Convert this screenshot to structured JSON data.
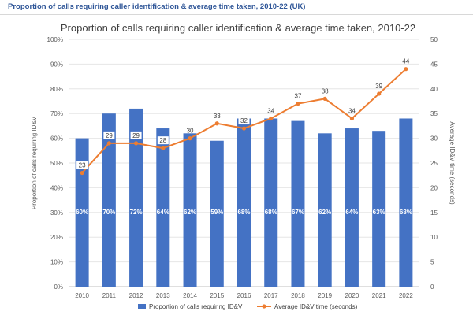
{
  "header": {
    "title": "Proportion of calls requiring caller identification & average time taken, 2010-22 (UK)"
  },
  "chart_data": {
    "type": "bar+line",
    "title": "Proportion of calls requiring caller identification & average time taken, 2010-22",
    "categories": [
      "2010",
      "2011",
      "2012",
      "2013",
      "2014",
      "2015",
      "2016",
      "2017",
      "2018",
      "2019",
      "2020",
      "2021",
      "2022"
    ],
    "series": [
      {
        "name": "Proportion of calls requiring ID&V",
        "type": "bar",
        "axis": "left",
        "color": "#4472c4",
        "values": [
          60,
          70,
          72,
          64,
          62,
          59,
          68,
          68,
          67,
          62,
          64,
          63,
          68
        ],
        "labels": [
          "60%",
          "70%",
          "72%",
          "64%",
          "62%",
          "59%",
          "68%",
          "68%",
          "67%",
          "62%",
          "64%",
          "63%",
          "68%"
        ]
      },
      {
        "name": "Average ID&V time (seconds)",
        "type": "line",
        "axis": "right",
        "color": "#ed7d31",
        "values": [
          23,
          29,
          29,
          28,
          30,
          33,
          32,
          34,
          37,
          38,
          34,
          39,
          44
        ],
        "labels": [
          "23",
          "29",
          "29",
          "28",
          "30",
          "33",
          "32",
          "34",
          "37",
          "38",
          "34",
          "39",
          "44"
        ]
      }
    ],
    "y_left": {
      "label": "Proportion of calls requiring ID&V",
      "range": [
        0,
        100
      ],
      "ticks": [
        "0%",
        "10%",
        "20%",
        "30%",
        "40%",
        "50%",
        "60%",
        "70%",
        "80%",
        "90%",
        "100%"
      ]
    },
    "y_right": {
      "label": "Average ID&V time (seconds)",
      "range": [
        0,
        50
      ],
      "ticks": [
        "0",
        "5",
        "10",
        "15",
        "20",
        "25",
        "30",
        "35",
        "40",
        "45",
        "50"
      ]
    },
    "legend": {
      "position": "bottom",
      "items": [
        "Proportion of calls requiring ID&V",
        "Average ID&V time (seconds)"
      ]
    }
  }
}
